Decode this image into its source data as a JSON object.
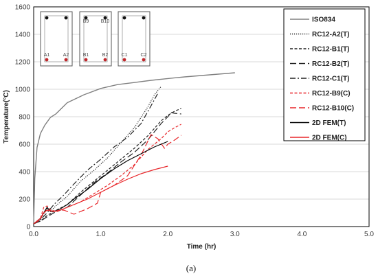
{
  "caption": "(a)",
  "chart_data": {
    "type": "line",
    "title": "",
    "xlabel": "Time (hr)",
    "ylabel": "Temperature(°C)",
    "xlim": [
      0.0,
      5.0
    ],
    "ylim": [
      0,
      1600
    ],
    "xticks": [
      "0.0",
      "1.0",
      "2.0",
      "3.0",
      "4.0",
      "5.0"
    ],
    "yticks": [
      "0",
      "200",
      "400",
      "600",
      "800",
      "1000",
      "1200",
      "1400",
      "1600"
    ],
    "grid": true,
    "legend_position": "right",
    "series": [
      {
        "name": "ISO834",
        "color": "#808080",
        "dash": "solid",
        "x": [
          0,
          0.0167,
          0.05,
          0.1,
          0.167,
          0.25,
          0.333,
          0.5,
          0.75,
          1.0,
          1.25,
          1.5,
          1.75,
          2.0,
          2.25,
          2.5,
          2.75,
          3.0
        ],
        "y": [
          20,
          349,
          576,
          678,
          739,
          795,
          821,
          902,
          960,
          1006,
          1034,
          1049,
          1065,
          1078,
          1090,
          1100,
          1110,
          1120
        ]
      },
      {
        "name": "RC12-A2(T)",
        "color": "#222222",
        "dash": "dot",
        "x": [
          0,
          0.1,
          0.15,
          0.2,
          0.25,
          0.35,
          0.5,
          0.7,
          0.9,
          1.1,
          1.3,
          1.5,
          1.7,
          1.8,
          1.9
        ],
        "y": [
          20,
          50,
          90,
          130,
          110,
          160,
          220,
          330,
          410,
          500,
          610,
          720,
          870,
          960,
          1020
        ]
      },
      {
        "name": "RC12-B1(T)",
        "color": "#222222",
        "dash": "short-dash",
        "x": [
          0,
          0.1,
          0.2,
          0.3,
          0.5,
          0.7,
          0.9,
          1.1,
          1.3,
          1.5,
          1.7,
          1.9,
          2.0,
          2.1,
          2.2
        ],
        "y": [
          20,
          40,
          80,
          110,
          160,
          250,
          330,
          410,
          490,
          570,
          660,
          770,
          810,
          840,
          860
        ]
      },
      {
        "name": "RC12-B2(T)",
        "color": "#222222",
        "dash": "long-dash",
        "x": [
          0,
          0.1,
          0.2,
          0.3,
          0.5,
          0.7,
          0.9,
          1.1,
          1.3,
          1.5,
          1.7,
          1.9,
          2.0,
          2.05,
          2.1,
          2.2
        ],
        "y": [
          20,
          40,
          70,
          100,
          140,
          230,
          320,
          390,
          470,
          540,
          630,
          750,
          800,
          830,
          825,
          820
        ]
      },
      {
        "name": "RC12-C1(T)",
        "color": "#222222",
        "dash": "dash-dot",
        "x": [
          0,
          0.1,
          0.2,
          0.3,
          0.45,
          0.6,
          0.8,
          1.0,
          1.2,
          1.4,
          1.6,
          1.75,
          1.85
        ],
        "y": [
          20,
          50,
          100,
          160,
          230,
          310,
          410,
          490,
          580,
          650,
          750,
          880,
          970
        ]
      },
      {
        "name": "RC12-B9(C)",
        "color": "#e8262a",
        "dash": "short-dash",
        "x": [
          0,
          0.1,
          0.15,
          0.2,
          0.25,
          0.35,
          0.5,
          0.7,
          0.9,
          1.1,
          1.3,
          1.5,
          1.7,
          1.9,
          2.0,
          2.1,
          2.2
        ],
        "y": [
          20,
          60,
          140,
          150,
          120,
          110,
          140,
          180,
          240,
          300,
          370,
          450,
          560,
          640,
          690,
          720,
          745
        ]
      },
      {
        "name": "RC12-B10(C)",
        "color": "#e8262a",
        "dash": "long-dash",
        "x": [
          0,
          0.1,
          0.15,
          0.2,
          0.3,
          0.45,
          0.6,
          0.8,
          0.95,
          1.0,
          1.2,
          1.4,
          1.6,
          1.75,
          1.85,
          1.95,
          2.0,
          2.1,
          2.2
        ],
        "y": [
          20,
          50,
          110,
          120,
          110,
          120,
          90,
          130,
          170,
          250,
          300,
          370,
          520,
          670,
          640,
          570,
          600,
          630,
          665
        ]
      },
      {
        "name": "2D FEM(T)",
        "color": "#000000",
        "dash": "solid",
        "x": [
          0,
          0.1,
          0.15,
          0.2,
          0.25,
          0.3,
          0.4,
          0.5,
          0.6,
          0.8,
          1.0,
          1.2,
          1.4,
          1.6,
          1.8,
          2.0
        ],
        "y": [
          20,
          60,
          100,
          140,
          110,
          110,
          130,
          160,
          200,
          270,
          350,
          420,
          480,
          530,
          580,
          620
        ]
      },
      {
        "name": "2D FEM(C)",
        "color": "#e8262a",
        "dash": "solid",
        "x": [
          0,
          0.1,
          0.15,
          0.2,
          0.3,
          0.4,
          0.5,
          0.6,
          0.8,
          1.0,
          1.2,
          1.4,
          1.6,
          1.8,
          2.0
        ],
        "y": [
          20,
          60,
          100,
          120,
          110,
          120,
          140,
          160,
          200,
          250,
          300,
          345,
          385,
          415,
          440
        ]
      }
    ]
  },
  "sections": [
    {
      "labels": [
        "A1",
        "A2"
      ]
    },
    {
      "labels": [
        "B1",
        "B2",
        "B9",
        "B10"
      ]
    },
    {
      "labels": [
        "C1",
        "C2"
      ]
    }
  ]
}
